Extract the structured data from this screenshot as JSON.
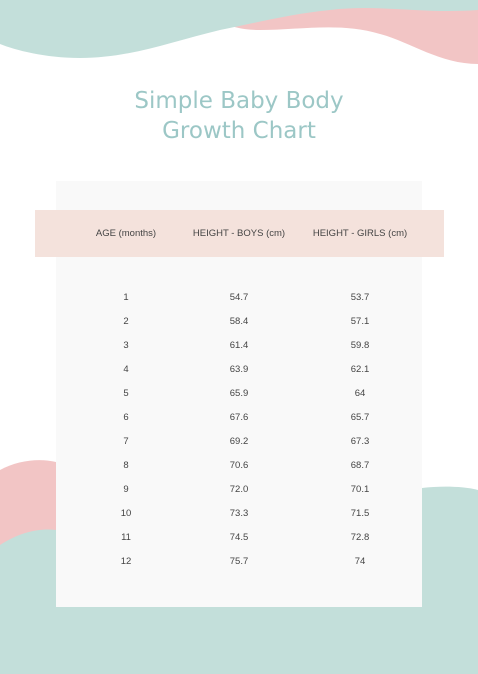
{
  "title": {
    "line1": "Simple Baby Body",
    "line2": "Growth Chart"
  },
  "table": {
    "headers": [
      "AGE (months)",
      "HEIGHT - BOYS (cm)",
      "HEIGHT - GIRLS (cm)"
    ],
    "rows": [
      [
        "1",
        "54.7",
        "53.7"
      ],
      [
        "2",
        "58.4",
        "57.1"
      ],
      [
        "3",
        "61.4",
        "59.8"
      ],
      [
        "4",
        "63.9",
        "62.1"
      ],
      [
        "5",
        "65.9",
        "64"
      ],
      [
        "6",
        "67.6",
        "65.7"
      ],
      [
        "7",
        "69.2",
        "67.3"
      ],
      [
        "8",
        "70.6",
        "68.7"
      ],
      [
        "9",
        "72.0",
        "70.1"
      ],
      [
        "10",
        "73.3",
        "71.5"
      ],
      [
        "11",
        "74.5",
        "72.8"
      ],
      [
        "12",
        "75.7",
        "74"
      ]
    ]
  },
  "colors": {
    "mint": "#c3dfda",
    "pink": "#f2c5c5",
    "title": "#9cc7c6",
    "header_band": "#f4e2dc",
    "card": "#f9f9f9"
  }
}
